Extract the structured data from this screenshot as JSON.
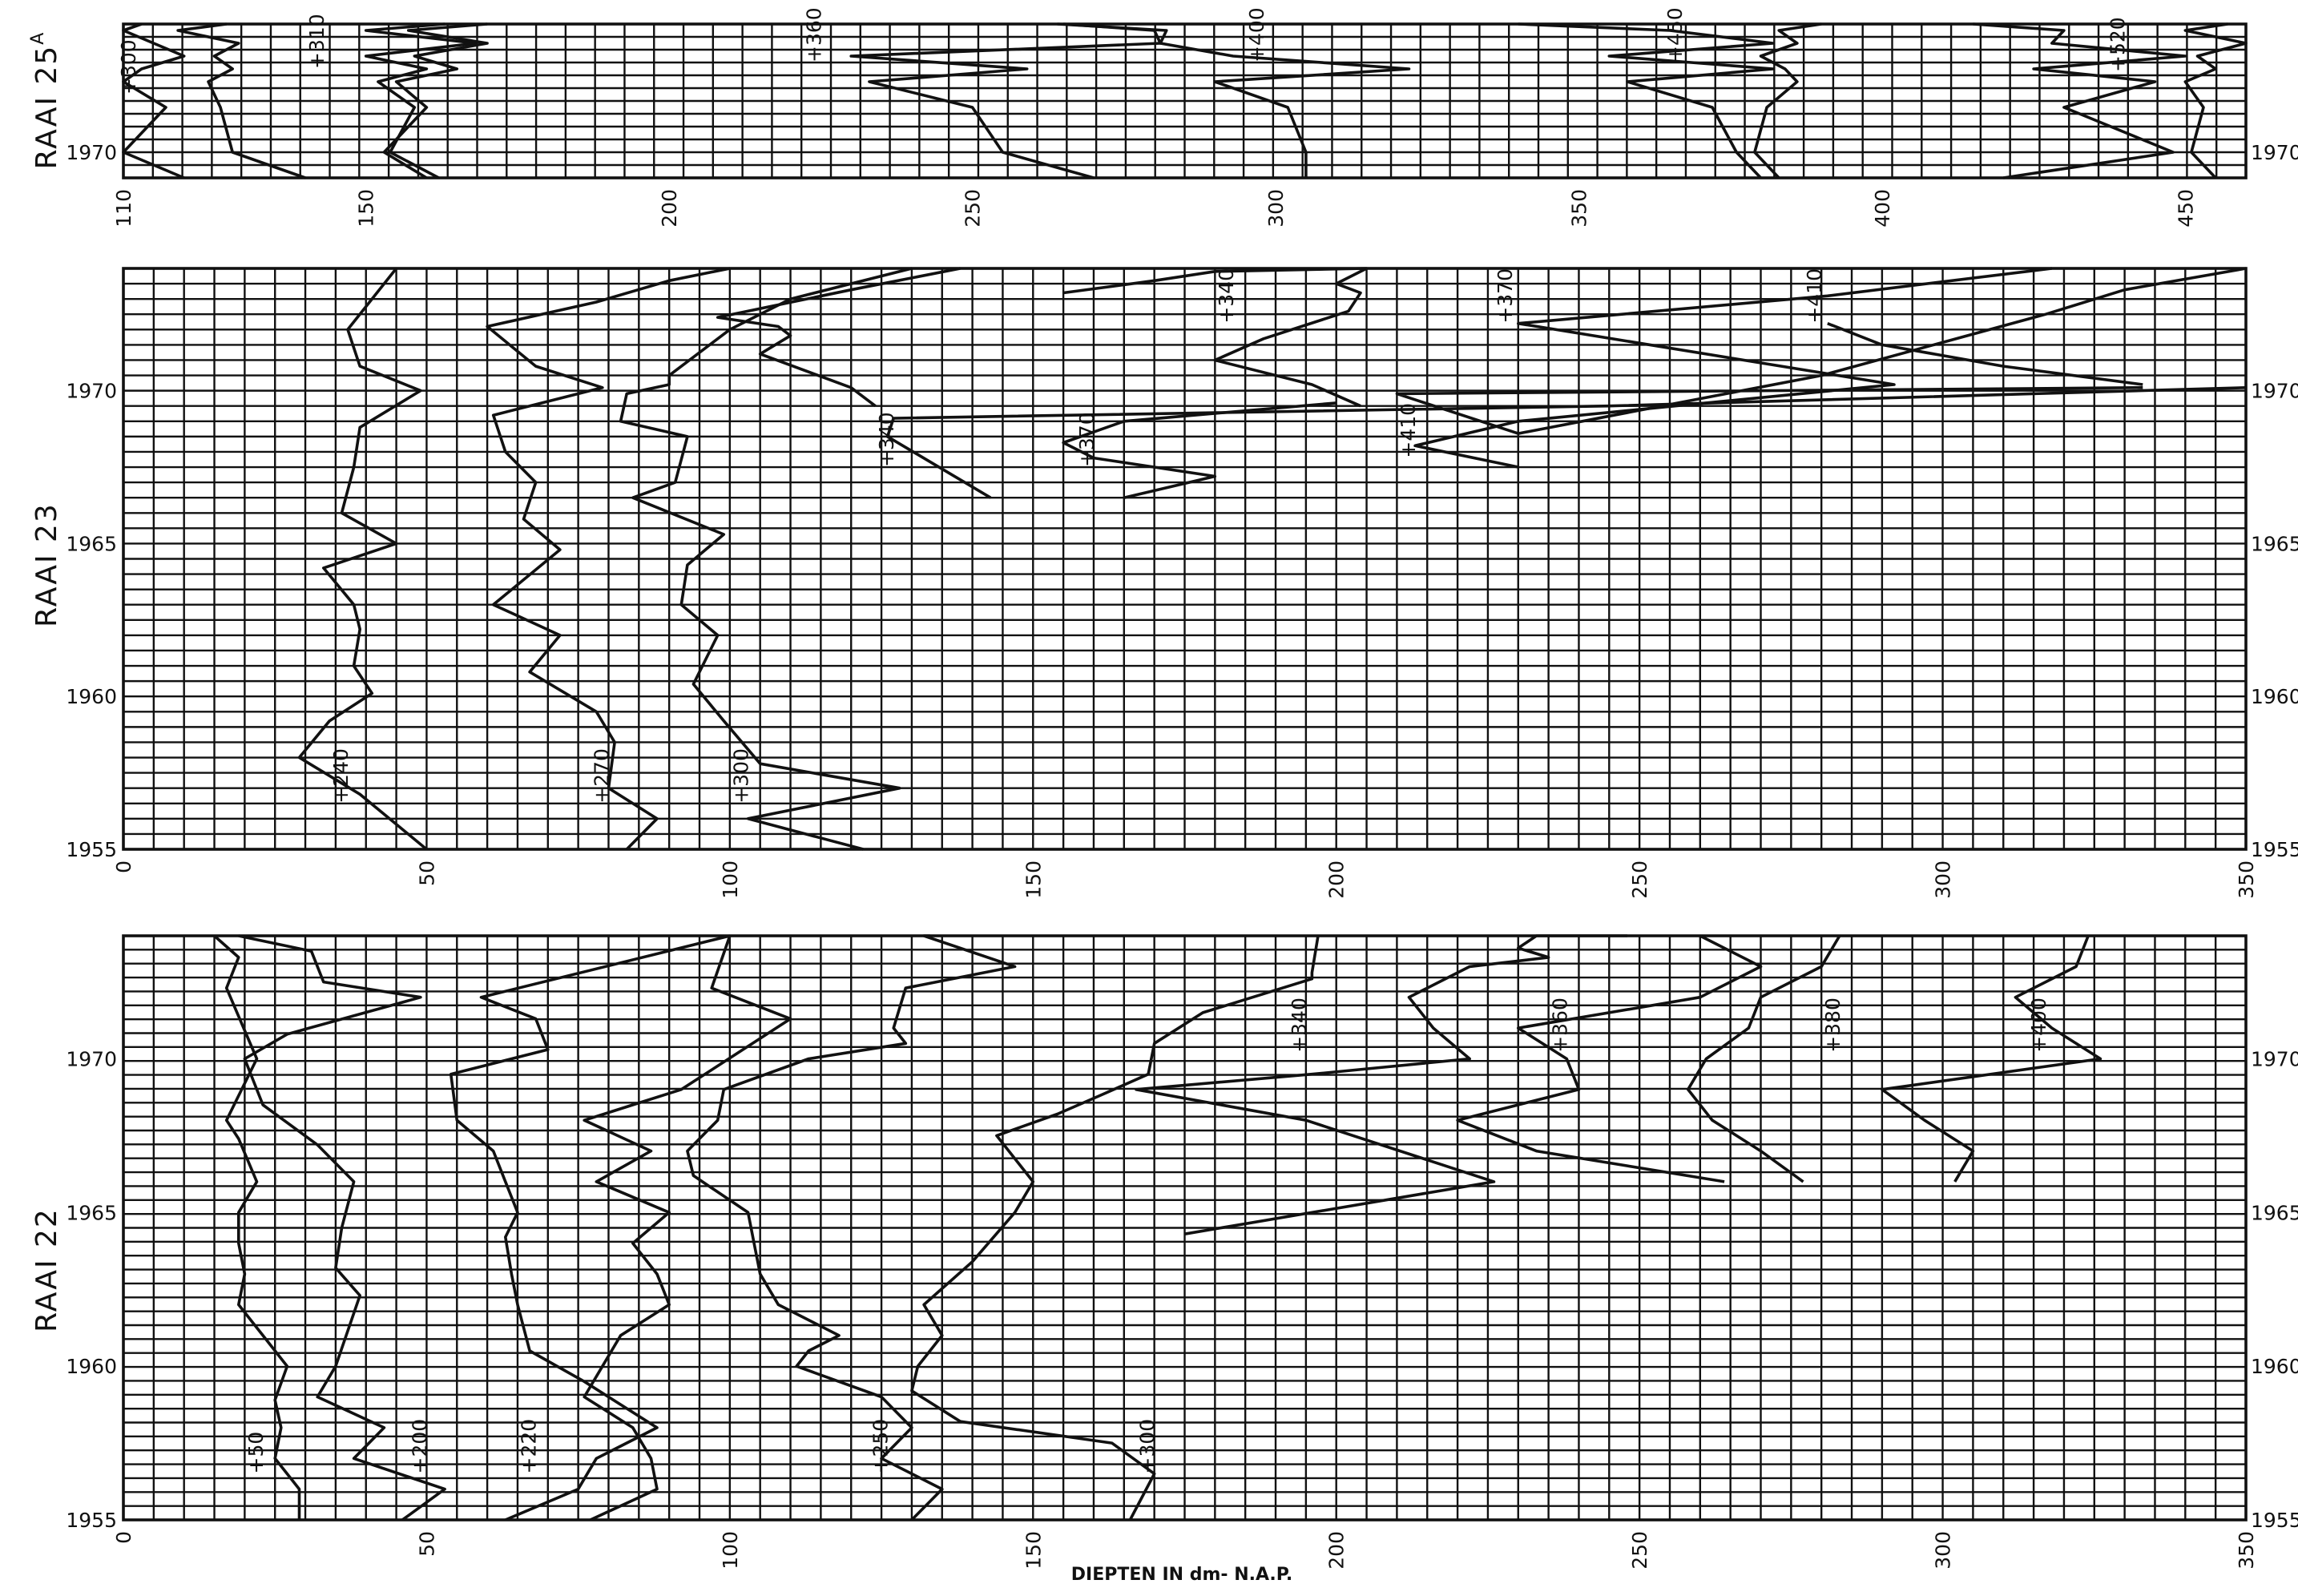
{
  "caption": "DIEPTEN IN dm- N.A.P.",
  "chart_data": [
    {
      "type": "line",
      "title": "RAAI 25",
      "title_sup": "A",
      "xlim": [
        110,
        460
      ],
      "xticks": [
        "110",
        "150",
        "200",
        "250",
        "300",
        "350",
        "400",
        "450"
      ],
      "ylim": [
        1969.2,
        1974
      ],
      "yticks": [
        "1970"
      ],
      "series": [
        {
          "name": "+300",
          "label_at": [
            112,
            1971.8
          ],
          "x": [
            113,
            110,
            115,
            120,
            113,
            110,
            117,
            110,
            120
          ],
          "y": [
            1974,
            1973.8,
            1973.4,
            1973,
            1972.6,
            1972.2,
            1971.4,
            1970,
            1969.2
          ]
        },
        {
          "name": "+310",
          "label_at": [
            143,
            1972.6
          ],
          "x": [
            127,
            119,
            129,
            125,
            128,
            124,
            126,
            128,
            140
          ],
          "y": [
            1974,
            1973.8,
            1973.4,
            1973,
            1972.6,
            1972.2,
            1971.4,
            1970,
            1969.2
          ]
        },
        {
          "name": "",
          "x": [
            163,
            150,
            168,
            150,
            160,
            152,
            158,
            154,
            162
          ],
          "y": [
            1974,
            1973.8,
            1973.4,
            1973,
            1972.6,
            1972.2,
            1971.4,
            1970,
            1969.2
          ]
        },
        {
          "name": "",
          "x": [
            170,
            157,
            170,
            158,
            165,
            155,
            160,
            153,
            160
          ],
          "y": [
            1974,
            1973.8,
            1973.4,
            1973,
            1972.6,
            1972.2,
            1971.4,
            1970,
            1969.2
          ]
        },
        {
          "name": "+360",
          "label_at": [
            225,
            1972.8
          ],
          "x": [
            265,
            280,
            281,
            230,
            259,
            233,
            250,
            255,
            270
          ],
          "y": [
            1974,
            1973.8,
            1973.4,
            1973,
            1972.6,
            1972.2,
            1971.4,
            1970,
            1969.2
          ]
        },
        {
          "name": "+400",
          "label_at": [
            298,
            1972.8
          ],
          "x": [
            264,
            282,
            281,
            293,
            322,
            290,
            302,
            305,
            305
          ],
          "y": [
            1974,
            1973.8,
            1973.4,
            1973,
            1972.6,
            1972.2,
            1971.4,
            1970,
            1969.2
          ]
        },
        {
          "name": "+450",
          "label_at": [
            367,
            1972.8
          ],
          "x": [
            340,
            365,
            382,
            355,
            382,
            358,
            372,
            376,
            380
          ],
          "y": [
            1974,
            1973.8,
            1973.4,
            1973,
            1972.6,
            1972.2,
            1971.4,
            1970,
            1969.2
          ]
        },
        {
          "name": "+520",
          "label_at": [
            440,
            1972.5
          ],
          "x": [
            415,
            430,
            428,
            450,
            425,
            445,
            430,
            448,
            420
          ],
          "y": [
            1974,
            1973.8,
            1973.4,
            1973,
            1972.6,
            1972.2,
            1971.4,
            1970,
            1969.2
          ]
        },
        {
          "name": "",
          "x": [
            390,
            383,
            386,
            380,
            384,
            386,
            381,
            379,
            383
          ],
          "y": [
            1974,
            1973.8,
            1973.4,
            1973,
            1972.6,
            1972.2,
            1971.4,
            1970,
            1969.2
          ]
        },
        {
          "name": "",
          "x": [
            457,
            450,
            460,
            452,
            455,
            450,
            453,
            451,
            455
          ],
          "y": [
            1974,
            1973.8,
            1973.4,
            1973,
            1972.6,
            1972.2,
            1971.4,
            1970,
            1969.2
          ]
        }
      ]
    },
    {
      "type": "line",
      "title": "RAAI 23",
      "xlim": [
        0,
        350
      ],
      "xticks": [
        "0",
        "50",
        "100",
        "150",
        "200",
        "250",
        "300",
        "350"
      ],
      "ylim": [
        1955,
        1974
      ],
      "yticks": [
        "1955",
        "1960",
        "1965",
        "1970"
      ],
      "series": [
        {
          "name": "+240",
          "label_at": [
            37,
            1956.5
          ],
          "x": [
            50,
            39,
            29,
            34,
            41,
            38,
            39,
            38,
            33,
            45,
            36,
            38,
            39,
            49,
            39,
            37,
            45
          ],
          "y": [
            1955,
            1956.8,
            1958,
            1959.2,
            1960.1,
            1961,
            1962.2,
            1963,
            1964.2,
            1965,
            1966,
            1967.5,
            1968.8,
            1970,
            1970.8,
            1972,
            1974
          ]
        },
        {
          "name": "+270",
          "label_at": [
            80,
            1956.5
          ],
          "x": [
            83,
            88,
            80,
            81,
            78,
            67,
            72,
            61,
            72,
            66,
            68,
            63,
            61,
            79,
            68,
            60,
            78,
            90,
            100
          ],
          "y": [
            1955,
            1956,
            1957,
            1958.5,
            1959.5,
            1960.8,
            1962,
            1963,
            1964.8,
            1965.8,
            1967,
            1968,
            1969.2,
            1970.1,
            1970.8,
            1972.1,
            1972.9,
            1973.6,
            1974
          ]
        },
        {
          "name": "+300",
          "label_at": [
            103,
            1956.5
          ],
          "x": [
            122,
            103,
            128,
            105,
            99,
            94,
            98,
            92,
            93,
            99,
            84,
            91,
            93,
            82,
            83,
            90,
            90,
            100,
            110,
            130
          ],
          "y": [
            1955,
            1956,
            1957,
            1957.8,
            1959.2,
            1960.4,
            1962,
            1963,
            1964.3,
            1965.3,
            1966.5,
            1967,
            1968.5,
            1969,
            1969.9,
            1970.2,
            1970.5,
            1972,
            1973,
            1974
          ]
        },
        {
          "name": "+340",
          "label_at": [
            127,
            1967.5
          ],
          "x": [
            143,
            126,
            127,
            245,
            400
          ],
          "y": [
            1966.5,
            1968.5,
            1969.1,
            1969.5,
            1970.1
          ]
        },
        {
          "name": "",
          "x": [
            124,
            120,
            105,
            110,
            108,
            98,
            120,
            138
          ],
          "y": [
            1969.5,
            1970.1,
            1971.2,
            1971.8,
            1972.1,
            1972.4,
            1973.3,
            1974
          ]
        },
        {
          "name": "+340",
          "label_at": [
            183,
            1972.2
          ],
          "x": [
            204,
            196,
            180,
            188,
            202,
            204,
            200,
            205,
            180,
            170,
            155
          ],
          "y": [
            1969.5,
            1970.2,
            1971,
            1971.7,
            1972.6,
            1973.2,
            1973.5,
            1974,
            1973.9,
            1973.6,
            1973.2
          ]
        },
        {
          "name": "+370",
          "label_at": [
            160,
            1967.5
          ],
          "x": [
            165,
            180,
            160,
            155,
            165,
            200
          ],
          "y": [
            1966.5,
            1967.2,
            1967.8,
            1968.3,
            1969,
            1969.6
          ]
        },
        {
          "name": "+370",
          "label_at": [
            229,
            1972.2
          ],
          "x": [
            230,
            213,
            230,
            292,
            230,
            281,
            318
          ],
          "y": [
            1967.5,
            1968.2,
            1969,
            1970.2,
            1972.2,
            1973.1,
            1974
          ]
        },
        {
          "name": "+410",
          "label_at": [
            213,
            1967.8
          ],
          "x": [
            333,
            210,
            230,
            280,
            317,
            330,
            350
          ],
          "y": [
            1970.1,
            1969.9,
            1968.6,
            1970.5,
            1972.5,
            1973.3,
            1974
          ]
        },
        {
          "name": "+410",
          "label_at": [
            280,
            1972.2
          ],
          "x": [
            281,
            290,
            310,
            333
          ],
          "y": [
            1972.2,
            1971.5,
            1970.8,
            1970.2
          ]
        }
      ]
    },
    {
      "type": "line",
      "title": "RAAI 22",
      "xlim": [
        0,
        350
      ],
      "xticks": [
        "0",
        "50",
        "100",
        "150",
        "200",
        "250",
        "300",
        "350"
      ],
      "ylim": [
        1955,
        1974
      ],
      "yticks": [
        "1955",
        "1960",
        "1965",
        "1970"
      ],
      "series": [
        {
          "name": "+50",
          "label_at": [
            23,
            1956.5
          ],
          "x": [
            29,
            29,
            25,
            26,
            25,
            27,
            23,
            19,
            20,
            19,
            19,
            22,
            19,
            17,
            22,
            17,
            19,
            15
          ],
          "y": [
            1955,
            1956,
            1957,
            1958,
            1958.9,
            1960,
            1961,
            1962,
            1963,
            1964,
            1965,
            1966,
            1967.4,
            1968,
            1970,
            1972.3,
            1973.3,
            1974
          ]
        },
        {
          "name": "+200",
          "label_at": [
            50,
            1956.5
          ],
          "x": [
            46,
            53,
            38,
            43,
            32,
            35,
            39,
            35,
            36,
            38,
            32,
            23,
            20,
            27,
            49,
            33,
            31,
            19
          ],
          "y": [
            1955,
            1956,
            1957,
            1958,
            1959,
            1960,
            1962.3,
            1963.2,
            1964.5,
            1966,
            1967.2,
            1968.5,
            1970,
            1970.8,
            1972,
            1972.5,
            1973.5,
            1974
          ]
        },
        {
          "name": "+220",
          "label_at": [
            68,
            1956.5
          ],
          "x": [
            63,
            75,
            78,
            88,
            76,
            67,
            65,
            64,
            63,
            65,
            63,
            61,
            55,
            54,
            70,
            68,
            59,
            100
          ],
          "y": [
            1955,
            1956,
            1957,
            1958,
            1959.5,
            1960.5,
            1962,
            1963,
            1964.2,
            1965,
            1966,
            1967,
            1968,
            1969.5,
            1970.3,
            1971.3,
            1972,
            1974
          ]
        },
        {
          "name": "",
          "x": [
            77,
            88,
            87,
            84,
            76,
            79,
            82,
            90,
            88,
            84,
            90,
            78,
            87,
            76,
            92,
            110,
            97,
            100
          ],
          "y": [
            1955,
            1956,
            1957,
            1958,
            1959,
            1960,
            1961,
            1962,
            1963,
            1964,
            1965,
            1966,
            1967,
            1968,
            1969,
            1971.3,
            1972.3,
            1974
          ]
        },
        {
          "name": "+250",
          "label_at": [
            126,
            1956.5
          ],
          "x": [
            130,
            135,
            125,
            130,
            125,
            111,
            113,
            118,
            108,
            105,
            104,
            103,
            94,
            93,
            98,
            99,
            113,
            129,
            127,
            129,
            147,
            132,
            133
          ],
          "y": [
            1955,
            1956,
            1957,
            1958,
            1959,
            1960,
            1960.5,
            1961,
            1962,
            1963,
            1964,
            1965,
            1966.2,
            1967,
            1968,
            1969,
            1970,
            1970.5,
            1971,
            1972.3,
            1973,
            1974,
            1974
          ]
        },
        {
          "name": "+300",
          "label_at": [
            170,
            1956.5
          ],
          "x": [
            166,
            170,
            163,
            138,
            130,
            131,
            135,
            132,
            140,
            147,
            150,
            144,
            154,
            161,
            169,
            170,
            178,
            196,
            196,
            197
          ],
          "y": [
            1955,
            1956.5,
            1957.5,
            1958.2,
            1959.2,
            1960,
            1961,
            1962,
            1963.4,
            1965,
            1966,
            1967.5,
            1968.2,
            1968.8,
            1969.5,
            1970.5,
            1971.5,
            1972.6,
            1972.8,
            1974
          ]
        },
        {
          "name": "+340",
          "label_at": [
            195,
            1970.2
          ],
          "x": [
            175,
            226,
            195,
            167,
            196,
            222,
            216,
            212,
            222,
            235,
            230,
            233,
            248
          ],
          "y": [
            1964.3,
            1966,
            1968,
            1969,
            1969.5,
            1970,
            1971,
            1972,
            1973,
            1973.3,
            1973.6,
            1974,
            1974
          ]
        },
        {
          "name": "+360",
          "label_at": [
            238,
            1970.2
          ],
          "x": [
            264,
            233,
            220,
            240,
            238,
            230,
            260,
            270,
            260
          ],
          "y": [
            1966,
            1967,
            1968,
            1969,
            1970,
            1971,
            1972,
            1973,
            1974
          ]
        },
        {
          "name": "+380",
          "label_at": [
            283,
            1970.2
          ],
          "x": [
            277,
            270,
            262,
            258,
            261,
            268,
            270,
            280,
            283
          ],
          "y": [
            1966,
            1967,
            1968,
            1969,
            1970,
            1971,
            1972,
            1973,
            1974
          ]
        },
        {
          "name": "+400",
          "label_at": [
            317,
            1970.2
          ],
          "x": [
            302,
            305,
            297,
            290,
            326,
            318,
            312,
            322,
            324
          ],
          "y": [
            1966,
            1967,
            1968,
            1969,
            1970,
            1971,
            1972,
            1973,
            1974
          ]
        }
      ]
    }
  ]
}
